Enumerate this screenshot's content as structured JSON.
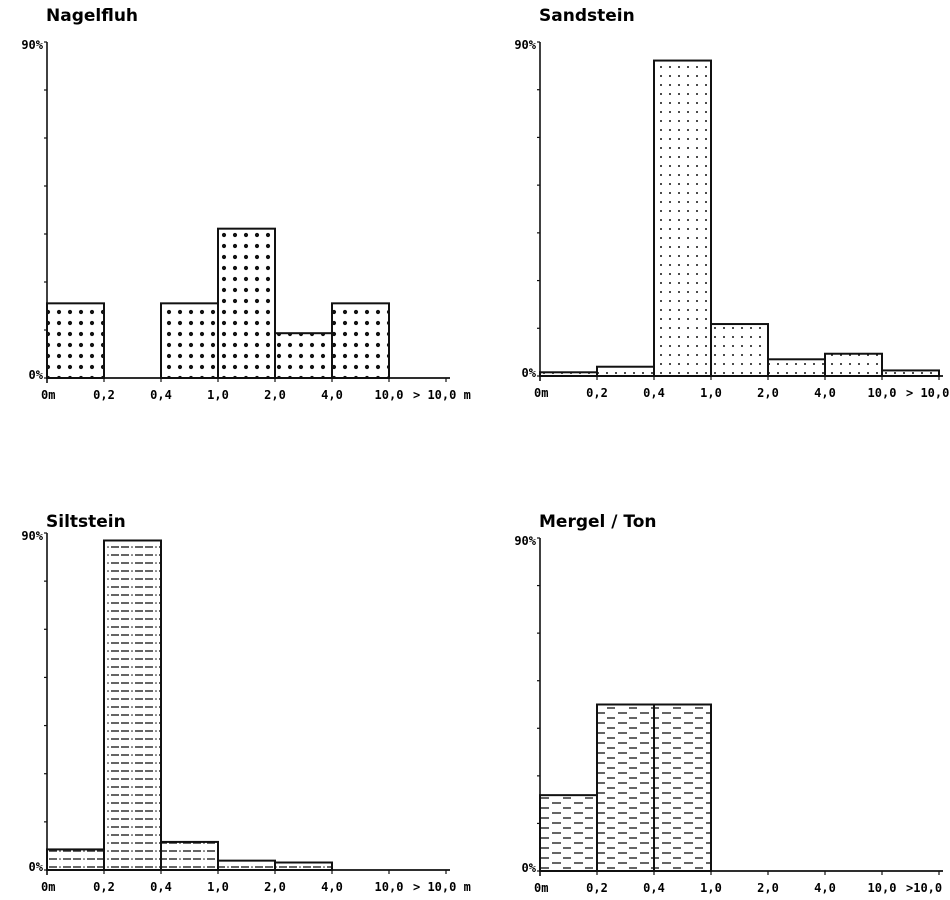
{
  "chart_data": [
    {
      "type": "bar",
      "title": "Nagelfluh",
      "ytick_labels": [
        "90%",
        "0%"
      ],
      "ylim": [
        0,
        90
      ],
      "xtick_labels": [
        "0m",
        "0,2",
        "0,4",
        "1,0",
        "2,0",
        "4,0",
        "10,0",
        "> 10,0 m"
      ],
      "categories": [
        "0–0,2",
        "0,2–0,4",
        "0,4–1,0",
        "1,0–2,0",
        "2,0–4,0",
        "4,0–10,0",
        "> 10,0"
      ],
      "values": [
        20,
        0,
        20,
        40,
        12,
        20,
        0
      ],
      "pattern": "dots-coarse",
      "grid": false,
      "legend": "none"
    },
    {
      "type": "bar",
      "title": "Sandstein",
      "ytick_labels": [
        "90%",
        "0%"
      ],
      "ylim": [
        0,
        90
      ],
      "xtick_labels": [
        "0m",
        "0,2",
        "0,4",
        "1,0",
        "2,0",
        "4,0",
        "10,0",
        "> 10,0"
      ],
      "categories": [
        "0–0,2",
        "0,2–0,4",
        "0,4–1,0",
        "1,0–2,0",
        "2,0–4,0",
        "4,0–10,0",
        "> 10,0"
      ],
      "values": [
        1,
        2.5,
        85,
        14,
        4.5,
        6,
        1.5
      ],
      "pattern": "dots-fine",
      "grid": false,
      "legend": "none"
    },
    {
      "type": "bar",
      "title": "Siltstein",
      "ytick_labels": [
        "90%",
        "0%"
      ],
      "ylim": [
        0,
        90
      ],
      "xtick_labels": [
        "0m",
        "0,2",
        "0,4",
        "1,0",
        "2,0",
        "4,0",
        "10,0",
        "> 10,0 m"
      ],
      "categories": [
        "0–0,2",
        "0,2–0,4",
        "0,4–1,0",
        "1,0–2,0",
        "2,0–4,0",
        "4,0–10,0",
        "> 10,0"
      ],
      "values": [
        5.5,
        88,
        7.5,
        2.5,
        2,
        0,
        0
      ],
      "pattern": "dash-dot",
      "grid": false,
      "legend": "none"
    },
    {
      "type": "bar",
      "title": "Mergel / Ton",
      "ytick_labels": [
        "90%",
        "0%"
      ],
      "ylim": [
        0,
        90
      ],
      "xtick_labels": [
        "0m",
        "0,2",
        "0,4",
        "1,0",
        "2,0",
        "4,0",
        "10,0",
        ">10,0"
      ],
      "categories": [
        "0–0,2",
        "0,2–0,4",
        "0,4–1,0",
        "1,0–2,0",
        "2,0–4,0",
        "4,0–10,0",
        "> 10,0"
      ],
      "values": [
        20.5,
        45,
        45,
        0,
        0,
        0,
        0
      ],
      "pattern": "dashes",
      "grid": false,
      "legend": "none"
    }
  ]
}
